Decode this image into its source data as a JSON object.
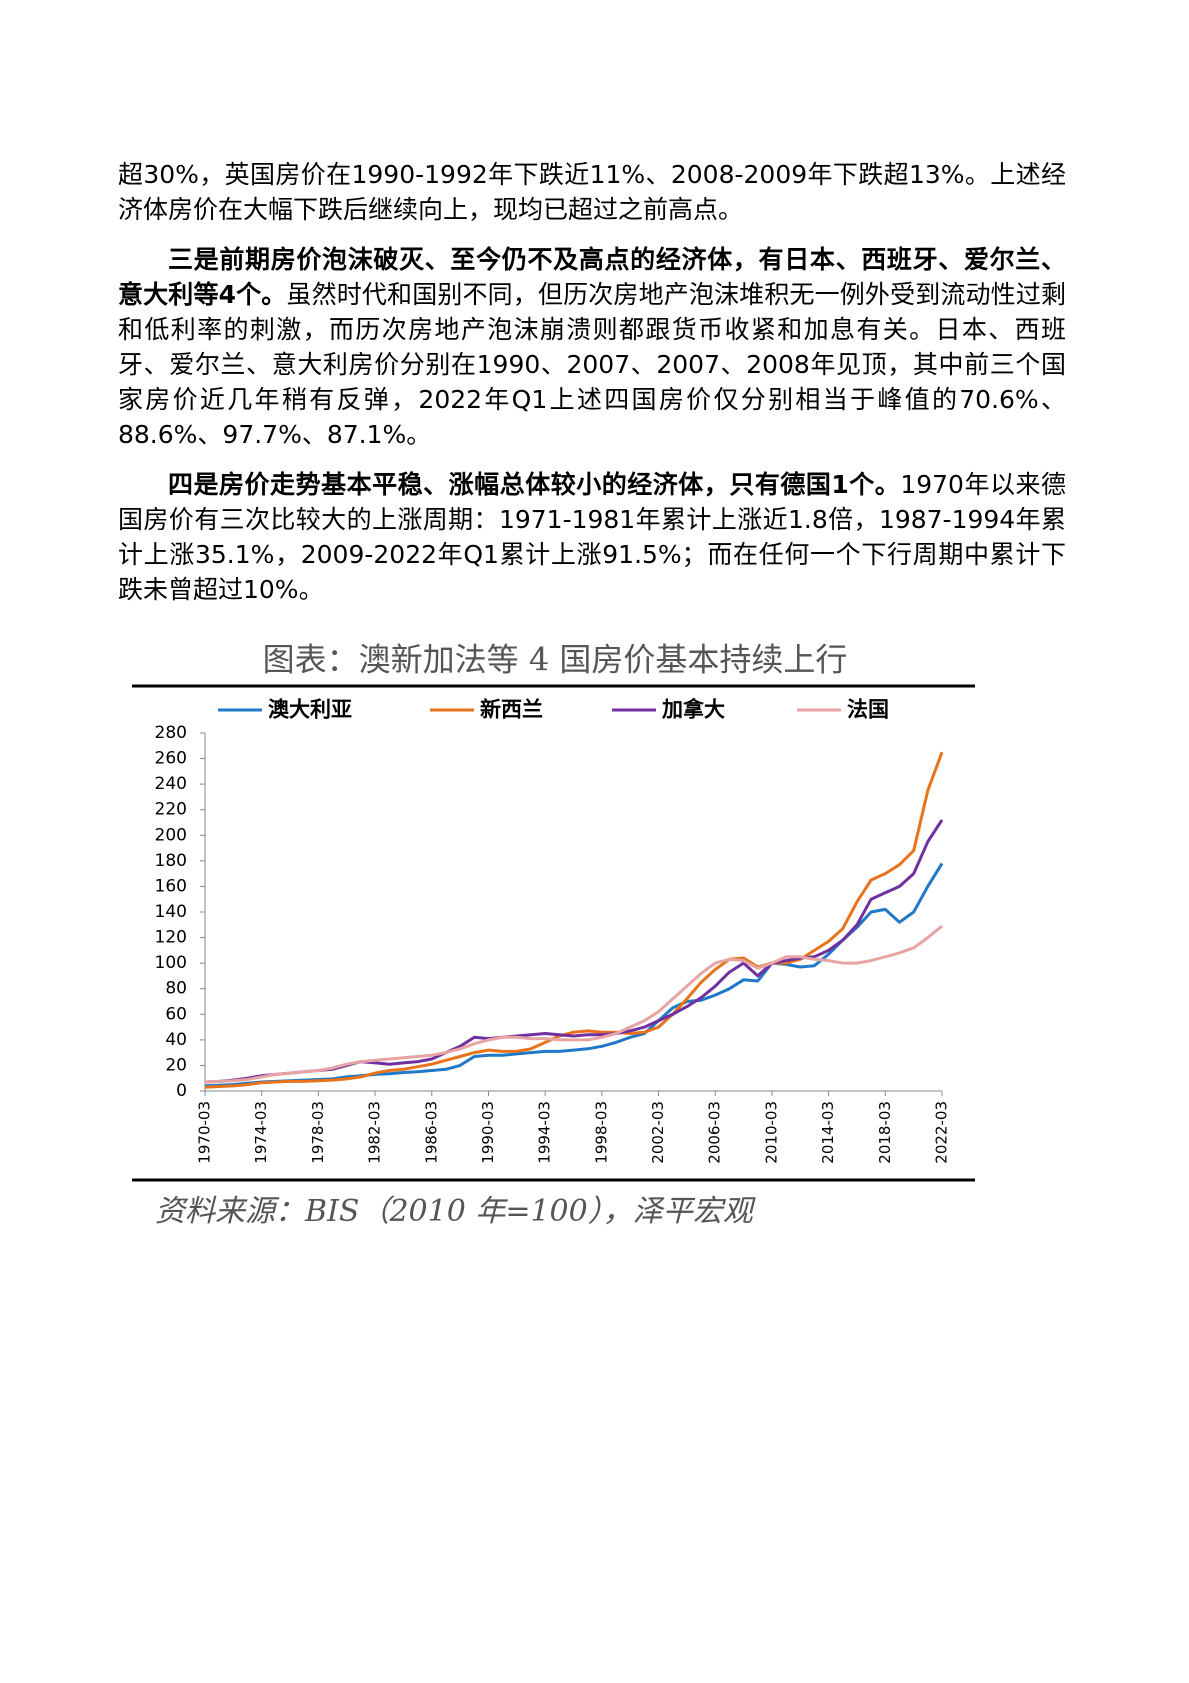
{
  "paragraphs": [
    {
      "runs": [
        {
          "text": "超30%，英国房价在1990-1992年下跌近11%、2008-2009年下跌超13%。上述经济体房价在大幅下跌后继续向上，现均已超过之前高点。",
          "bold": false
        }
      ]
    },
    {
      "runs": [
        {
          "text": "三是前期房价泡沫破灭、至今仍不及高点的经济体，有日本、西班牙、爱尔兰、意大利等4个。",
          "bold": true
        },
        {
          "text": "虽然时代和国别不同，但历次房地产泡沫堆积无一例外受到流动性过剩和低利率的刺激，而历次房地产泡沫崩溃则都跟货币收紧和加息有关。日本、西班牙、爱尔兰、意大利房价分别在1990、2007、2007、2008年见顶，其中前三个国家房价近几年稍有反弹，2022年Q1上述四国房价仅分别相当于峰值的70.6%、88.6%、97.7%、87.1%。",
          "bold": false
        }
      ]
    },
    {
      "runs": [
        {
          "text": "四是房价走势基本平稳、涨幅总体较小的经济体，只有德国1个。",
          "bold": true
        },
        {
          "text": "1970年以来德国房价有三次比较大的上涨周期：1971-1981年累计上涨近1.8倍，1987-1994年累计上涨35.1%，2009-2022年Q1累计上涨91.5%；而在任何一个下行周期中累计下跌未曾超过10%。",
          "bold": false
        }
      ]
    }
  ],
  "chart_data": {
    "type": "line",
    "title": "图表：澳新加法等 4 国房价基本持续上行",
    "source": "资料来源：BIS（2010 年=100），泽平宏观",
    "x": [
      "1970-03",
      "1971-03",
      "1972-03",
      "1973-03",
      "1974-03",
      "1975-03",
      "1976-03",
      "1977-03",
      "1978-03",
      "1979-03",
      "1980-03",
      "1981-03",
      "1982-03",
      "1983-03",
      "1984-03",
      "1985-03",
      "1986-03",
      "1987-03",
      "1988-03",
      "1989-03",
      "1990-03",
      "1991-03",
      "1992-03",
      "1993-03",
      "1994-03",
      "1995-03",
      "1996-03",
      "1997-03",
      "1998-03",
      "1999-03",
      "2000-03",
      "2001-03",
      "2002-03",
      "2003-03",
      "2004-03",
      "2005-03",
      "2006-03",
      "2007-03",
      "2008-03",
      "2009-03",
      "2010-03",
      "2011-03",
      "2012-03",
      "2013-03",
      "2014-03",
      "2015-03",
      "2016-03",
      "2017-03",
      "2018-03",
      "2019-03",
      "2020-03",
      "2021-03",
      "2022-03"
    ],
    "xticks": [
      "1970-03",
      "1974-03",
      "1978-03",
      "1982-03",
      "1986-03",
      "1990-03",
      "1994-03",
      "1998-03",
      "2002-03",
      "2006-03",
      "2010-03",
      "2014-03",
      "2018-03",
      "2022-03"
    ],
    "ylim": [
      0,
      280
    ],
    "yticks": [
      0,
      20,
      40,
      60,
      80,
      100,
      120,
      140,
      160,
      180,
      200,
      220,
      240,
      260,
      280
    ],
    "series": [
      {
        "name": "澳大利亚",
        "color": "#1f78c8",
        "values": [
          4,
          4.5,
          5,
          6,
          7,
          7.5,
          8,
          8.5,
          9,
          9.5,
          11,
          12,
          13,
          13.5,
          14.5,
          15,
          16,
          17,
          20,
          27,
          28,
          28,
          29,
          30,
          31,
          31,
          32,
          33,
          35,
          38,
          42,
          45,
          55,
          65,
          70,
          71,
          75,
          80,
          87,
          86,
          100,
          99,
          97,
          98,
          107,
          118,
          128,
          140,
          142,
          132,
          140,
          160,
          178
        ]
      },
      {
        "name": "新西兰",
        "color": "#e8731a",
        "values": [
          3,
          3.5,
          4,
          5,
          6.5,
          7,
          7.5,
          7.5,
          8,
          8.5,
          9.5,
          11,
          14,
          16,
          17,
          19,
          21,
          24,
          27,
          30,
          32,
          31,
          31,
          33,
          38,
          43,
          46,
          47,
          46,
          46,
          45,
          46,
          50,
          60,
          72,
          85,
          95,
          103,
          104,
          97,
          100,
          100,
          103,
          110,
          117,
          127,
          148,
          165,
          170,
          177,
          188,
          235,
          265
        ]
      },
      {
        "name": "加拿大",
        "color": "#7030a0",
        "values": [
          7,
          7.5,
          8.5,
          10,
          12,
          13,
          14,
          15,
          16,
          17,
          20,
          23,
          22,
          21,
          22,
          23,
          25,
          30,
          35,
          42,
          41,
          42,
          43,
          44,
          45,
          44,
          43,
          44,
          44,
          45,
          47,
          50,
          55,
          60,
          66,
          73,
          82,
          93,
          100,
          90,
          100,
          102,
          104,
          105,
          110,
          118,
          130,
          150,
          155,
          160,
          170,
          195,
          212
        ]
      },
      {
        "name": "法国",
        "color": "#e8a4a4",
        "values": [
          7,
          7.5,
          8,
          9,
          11,
          13,
          14,
          15,
          16,
          18,
          21,
          23,
          24,
          25,
          26,
          27,
          28,
          30,
          33,
          37,
          40,
          42,
          42,
          41,
          41,
          40,
          40,
          40,
          42,
          45,
          50,
          55,
          62,
          72,
          82,
          92,
          100,
          103,
          102,
          96,
          100,
          105,
          105,
          103,
          102,
          100,
          100,
          102,
          105,
          108,
          112,
          120,
          129
        ]
      }
    ]
  }
}
